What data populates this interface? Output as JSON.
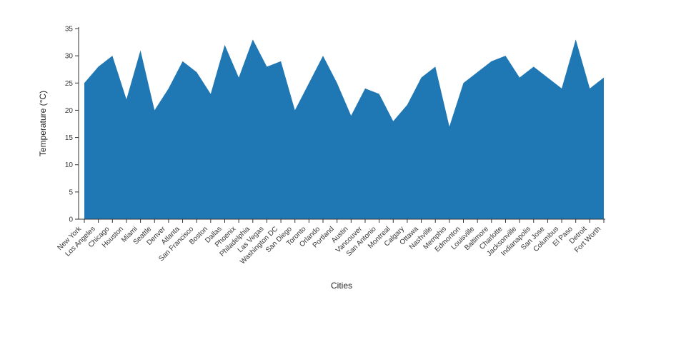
{
  "chart_data": {
    "type": "area",
    "title": "",
    "xlabel": "Cities",
    "ylabel": "Temperature (°C)",
    "ylim": [
      0,
      35
    ],
    "yticks": [
      0,
      5,
      10,
      15,
      20,
      25,
      30,
      35
    ],
    "grid": false,
    "legend": "none",
    "fill_color": "#1f77b4",
    "axis_color": "#333333",
    "categories": [
      "New York",
      "Los Angeles",
      "Chicago",
      "Houston",
      "Miami",
      "Seattle",
      "Denver",
      "Atlanta",
      "San Francisco",
      "Boston",
      "Dallas",
      "Phoenix",
      "Philadelphia",
      "Las Vegas",
      "Washington DC",
      "San Diego",
      "Toronto",
      "Orlando",
      "Portland",
      "Austin",
      "Vancouver",
      "San Antonio",
      "Montreal",
      "Calgary",
      "Ottawa",
      "Nashville",
      "Memphis",
      "Edmonton",
      "Louisville",
      "Baltimore",
      "Charlotte",
      "Jacksonville",
      "Indianapolis",
      "San Jose",
      "Columbus",
      "El Paso",
      "Detroit",
      "Fort Worth"
    ],
    "values": [
      25,
      28,
      30,
      22,
      31,
      20,
      24,
      29,
      27,
      23,
      32,
      26,
      33,
      28,
      29,
      20,
      25,
      30,
      25,
      19,
      24,
      23,
      18,
      21,
      26,
      28,
      17,
      25,
      27,
      29,
      30,
      26,
      28,
      26,
      24,
      33,
      24,
      26
    ]
  }
}
